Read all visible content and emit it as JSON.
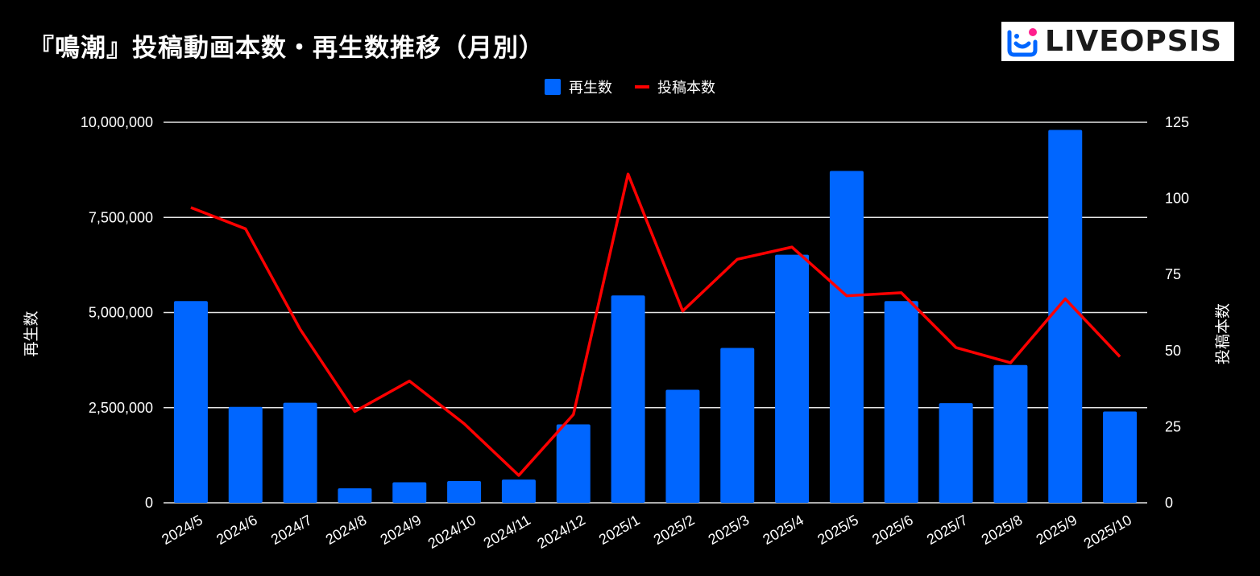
{
  "title": "『鳴潮』投稿動画本数・再生数推移（月別）",
  "logo": {
    "text": "LIVEOPSIS",
    "accent_color": "#0066ff",
    "dot_color": "#ff1f8e"
  },
  "colors": {
    "bar": "#0066ff",
    "line": "#ff0000",
    "grid": "#ffffff",
    "background": "#000000"
  },
  "chart_data": {
    "type": "bar",
    "title": "『鳴潮』投稿動画本数・再生数推移（月別）",
    "categories": [
      "2024/5",
      "2024/6",
      "2024/7",
      "2024/8",
      "2024/9",
      "2024/10",
      "2024/11",
      "2024/12",
      "2025/1",
      "2025/2",
      "2025/3",
      "2025/4",
      "2025/5",
      "2025/6",
      "2025/7",
      "2025/8",
      "2025/9",
      "2025/10"
    ],
    "series": [
      {
        "name": "再生数",
        "type": "bar",
        "axis": "left",
        "values": [
          5300000,
          2520000,
          2630000,
          380000,
          540000,
          570000,
          610000,
          2060000,
          5450000,
          2970000,
          4070000,
          6520000,
          8720000,
          5300000,
          2620000,
          3620000,
          9800000,
          2400000
        ]
      },
      {
        "name": "投稿本数",
        "type": "line",
        "axis": "right",
        "values": [
          97,
          90,
          57,
          30,
          40,
          26,
          9,
          29,
          108,
          63,
          80,
          84,
          68,
          69,
          51,
          46,
          67,
          48
        ]
      }
    ],
    "y_left": {
      "label": "再生数",
      "range": [
        0,
        10000000
      ],
      "ticks": [
        "0",
        "2,500,000",
        "5,000,000",
        "7,500,000",
        "10,000,000"
      ]
    },
    "y_right": {
      "label": "投稿本数",
      "range": [
        0,
        125
      ],
      "ticks": [
        "0",
        "25",
        "50",
        "75",
        "100",
        "125"
      ]
    },
    "grid": true,
    "legend": "top-center"
  }
}
